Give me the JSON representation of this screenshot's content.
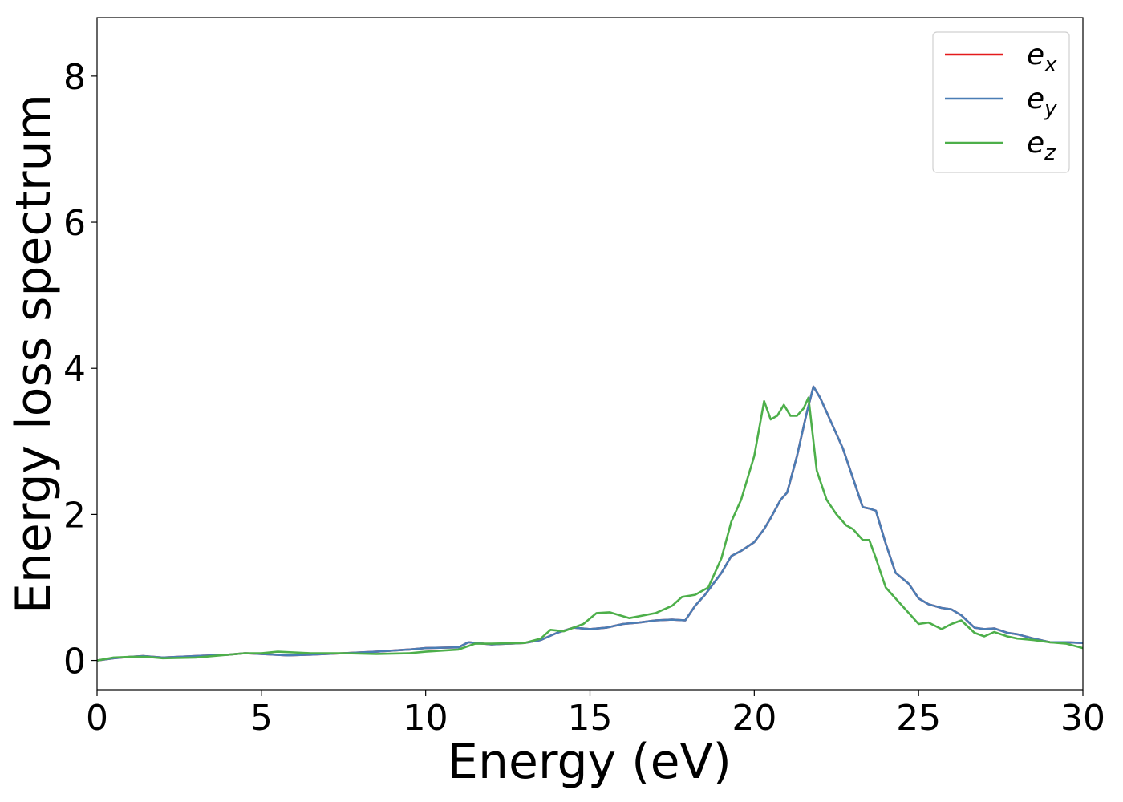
{
  "chart_data": {
    "type": "line",
    "title": "",
    "xlabel": "Energy (eV)",
    "ylabel": "Energy loss spectrum",
    "xlim": [
      0,
      30
    ],
    "ylim": [
      -0.4,
      8.8
    ],
    "xticks": [
      0,
      5,
      10,
      15,
      20,
      25,
      30
    ],
    "yticks": [
      0,
      2,
      4,
      6,
      8
    ],
    "xtick_labels": [
      "0",
      "5",
      "10",
      "15",
      "20",
      "25",
      "30"
    ],
    "ytick_labels": [
      "0",
      "2",
      "4",
      "6",
      "8"
    ],
    "grid": false,
    "legend_position": "top-right",
    "series": [
      {
        "name": "e_x",
        "label_base": "e",
        "label_sub": "x",
        "color": "#e41a1c",
        "x": [
          0,
          0.5,
          1.0,
          1.4,
          2.0,
          3.0,
          4.0,
          4.5,
          5.0,
          5.8,
          6.5,
          7.5,
          8.5,
          9.5,
          10.0,
          11.0,
          11.3,
          12.0,
          13.0,
          13.5,
          14.0,
          14.5,
          15.0,
          15.5,
          16.0,
          16.5,
          17.0,
          17.5,
          17.9,
          18.2,
          18.5,
          19.0,
          19.3,
          19.6,
          20.0,
          20.3,
          20.5,
          20.8,
          21.0,
          21.3,
          21.6,
          21.8,
          22.0,
          22.3,
          22.7,
          23.0,
          23.3,
          23.5,
          23.7,
          24.0,
          24.3,
          24.7,
          25.0,
          25.3,
          25.7,
          26.0,
          26.3,
          26.7,
          27.0,
          27.3,
          27.7,
          28.0,
          28.5,
          29.0,
          29.5,
          30.0
        ],
        "y": [
          0.0,
          0.03,
          0.05,
          0.06,
          0.04,
          0.06,
          0.08,
          0.1,
          0.09,
          0.07,
          0.08,
          0.1,
          0.12,
          0.15,
          0.17,
          0.18,
          0.25,
          0.22,
          0.24,
          0.28,
          0.38,
          0.45,
          0.43,
          0.45,
          0.5,
          0.52,
          0.55,
          0.56,
          0.55,
          0.75,
          0.9,
          1.2,
          1.43,
          1.5,
          1.62,
          1.8,
          1.95,
          2.2,
          2.3,
          2.8,
          3.4,
          3.75,
          3.6,
          3.3,
          2.9,
          2.5,
          2.1,
          2.08,
          2.05,
          1.6,
          1.2,
          1.05,
          0.85,
          0.77,
          0.72,
          0.7,
          0.62,
          0.45,
          0.43,
          0.44,
          0.38,
          0.36,
          0.3,
          0.25,
          0.25,
          0.24
        ]
      },
      {
        "name": "e_y",
        "label_base": "e",
        "label_sub": "y",
        "color": "#4a7db5",
        "x": [
          0,
          0.5,
          1.0,
          1.4,
          2.0,
          3.0,
          4.0,
          4.5,
          5.0,
          5.8,
          6.5,
          7.5,
          8.5,
          9.5,
          10.0,
          11.0,
          11.3,
          12.0,
          13.0,
          13.5,
          14.0,
          14.5,
          15.0,
          15.5,
          16.0,
          16.5,
          17.0,
          17.5,
          17.9,
          18.2,
          18.5,
          19.0,
          19.3,
          19.6,
          20.0,
          20.3,
          20.5,
          20.8,
          21.0,
          21.3,
          21.6,
          21.8,
          22.0,
          22.3,
          22.7,
          23.0,
          23.3,
          23.5,
          23.7,
          24.0,
          24.3,
          24.7,
          25.0,
          25.3,
          25.7,
          26.0,
          26.3,
          26.7,
          27.0,
          27.3,
          27.7,
          28.0,
          28.5,
          29.0,
          29.5,
          30.0
        ],
        "y": [
          0.0,
          0.03,
          0.05,
          0.06,
          0.04,
          0.06,
          0.08,
          0.1,
          0.09,
          0.07,
          0.08,
          0.1,
          0.12,
          0.15,
          0.17,
          0.18,
          0.25,
          0.22,
          0.24,
          0.28,
          0.38,
          0.45,
          0.43,
          0.45,
          0.5,
          0.52,
          0.55,
          0.56,
          0.55,
          0.75,
          0.9,
          1.2,
          1.43,
          1.5,
          1.62,
          1.8,
          1.95,
          2.2,
          2.3,
          2.8,
          3.4,
          3.75,
          3.6,
          3.3,
          2.9,
          2.5,
          2.1,
          2.08,
          2.05,
          1.6,
          1.2,
          1.05,
          0.85,
          0.77,
          0.72,
          0.7,
          0.62,
          0.45,
          0.43,
          0.44,
          0.38,
          0.36,
          0.3,
          0.25,
          0.25,
          0.24
        ]
      },
      {
        "name": "e_z",
        "label_base": "e",
        "label_sub": "z",
        "color": "#4daf4a",
        "x": [
          0,
          0.5,
          1.0,
          1.5,
          2.0,
          3.0,
          4.0,
          4.5,
          5.0,
          5.5,
          6.5,
          7.5,
          8.5,
          9.5,
          10.0,
          11.0,
          11.5,
          12.0,
          13.0,
          13.5,
          13.8,
          14.2,
          14.8,
          15.2,
          15.6,
          16.2,
          17.0,
          17.5,
          17.8,
          18.2,
          18.6,
          19.0,
          19.3,
          19.6,
          20.0,
          20.3,
          20.5,
          20.7,
          20.9,
          21.1,
          21.3,
          21.5,
          21.65,
          21.9,
          22.2,
          22.5,
          22.8,
          23.0,
          23.3,
          23.5,
          23.7,
          24.0,
          24.4,
          24.8,
          25.0,
          25.3,
          25.7,
          26.0,
          26.3,
          26.7,
          27.0,
          27.3,
          27.7,
          28.0,
          28.5,
          29.0,
          29.5,
          30.0
        ],
        "y": [
          0.0,
          0.04,
          0.05,
          0.05,
          0.03,
          0.04,
          0.08,
          0.1,
          0.1,
          0.12,
          0.1,
          0.1,
          0.09,
          0.1,
          0.12,
          0.15,
          0.23,
          0.23,
          0.24,
          0.3,
          0.42,
          0.4,
          0.5,
          0.65,
          0.66,
          0.58,
          0.65,
          0.75,
          0.87,
          0.9,
          1.0,
          1.4,
          1.9,
          2.2,
          2.8,
          3.55,
          3.3,
          3.35,
          3.5,
          3.35,
          3.35,
          3.45,
          3.6,
          2.6,
          2.2,
          2.0,
          1.85,
          1.8,
          1.65,
          1.65,
          1.4,
          1.0,
          0.8,
          0.6,
          0.5,
          0.52,
          0.43,
          0.5,
          0.55,
          0.38,
          0.33,
          0.39,
          0.33,
          0.3,
          0.28,
          0.25,
          0.23,
          0.17
        ]
      }
    ]
  }
}
